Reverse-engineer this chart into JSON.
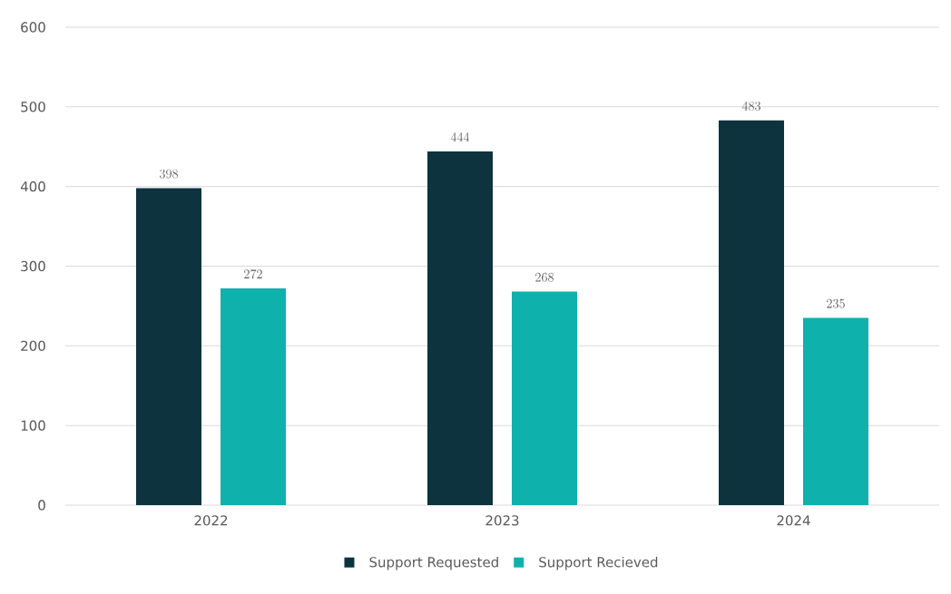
{
  "chart_data": {
    "type": "bar",
    "categories": [
      "2022",
      "2023",
      "2024"
    ],
    "series": [
      {
        "name": "Support Requested",
        "color": "#0d333e",
        "values": [
          398,
          444,
          483
        ]
      },
      {
        "name": "Support Recieved",
        "color": "#0fb1ac",
        "values": [
          272,
          268,
          235
        ]
      }
    ],
    "ylim": [
      0,
      600
    ],
    "yticks": [
      0,
      100,
      200,
      300,
      400,
      500,
      600
    ],
    "grid": "y",
    "legend": "bottom",
    "data_labels": true
  }
}
